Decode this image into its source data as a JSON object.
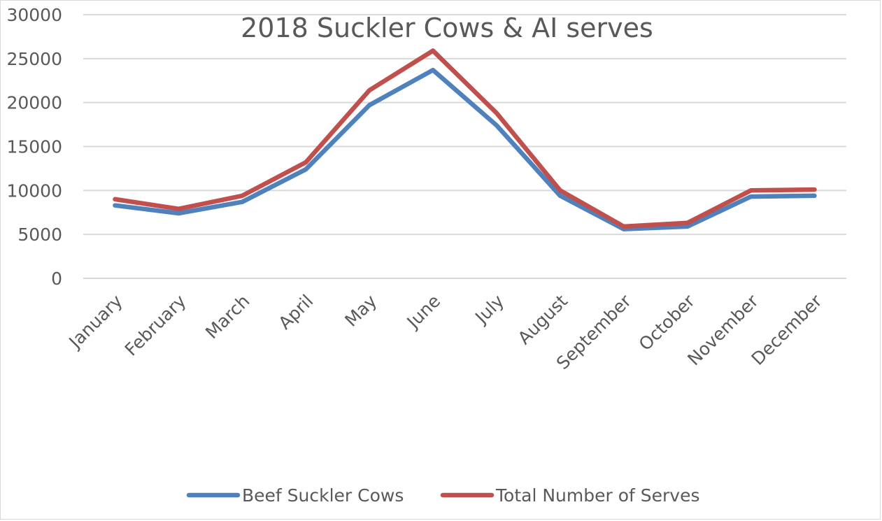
{
  "chart_data": {
    "type": "line",
    "title": "2018 Suckler Cows & AI serves",
    "xlabel": "",
    "ylabel": "",
    "ylim": [
      0,
      30000
    ],
    "y_ticks": [
      0,
      5000,
      10000,
      15000,
      20000,
      25000,
      30000
    ],
    "grid": true,
    "legend_position": "bottom",
    "categories": [
      "January",
      "February",
      "March",
      "April",
      "May",
      "June",
      "July",
      "August",
      "September",
      "October",
      "November",
      "December"
    ],
    "series": [
      {
        "name": "Beef Suckler Cows",
        "color": "#4f81bd",
        "values": [
          8300,
          7400,
          8700,
          12400,
          19700,
          23700,
          17400,
          9400,
          5600,
          5900,
          9300,
          9400
        ]
      },
      {
        "name": "Total Number of Serves",
        "color": "#c0504d",
        "values": [
          9000,
          7900,
          9400,
          13200,
          21400,
          25900,
          18800,
          10000,
          5900,
          6300,
          10000,
          10100
        ]
      }
    ]
  }
}
